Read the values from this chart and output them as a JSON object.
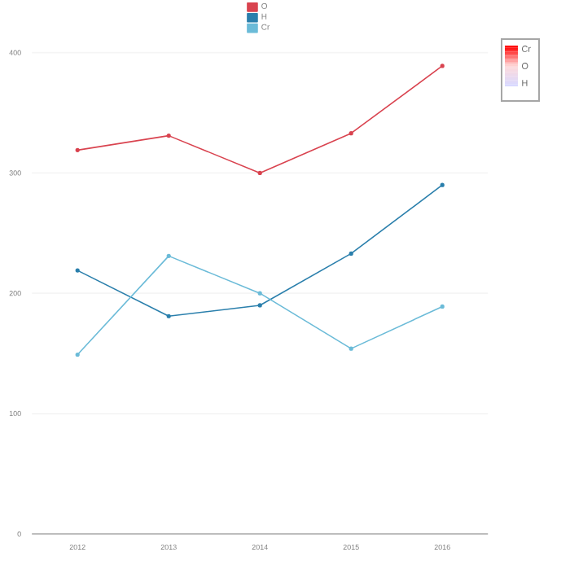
{
  "chart_data": {
    "type": "line",
    "categories": [
      "2012",
      "2013",
      "2014",
      "2015",
      "2016"
    ],
    "series": [
      {
        "name": "O",
        "color": "#d9434f",
        "values": [
          319,
          331,
          300,
          333,
          389
        ]
      },
      {
        "name": "H",
        "color": "#2a7fac",
        "values": [
          219,
          181,
          190,
          233,
          290
        ]
      },
      {
        "name": "Cr",
        "color": "#6bbbd8",
        "values": [
          149,
          231,
          200,
          154,
          189
        ]
      }
    ],
    "ylim": [
      0,
      400
    ],
    "yticks": [
      0,
      100,
      200,
      300,
      400
    ],
    "grid": "y",
    "legend": "top",
    "marker": "circle",
    "line_style": "solid",
    "annotations": [
      "Cr",
      "O",
      "H"
    ]
  }
}
